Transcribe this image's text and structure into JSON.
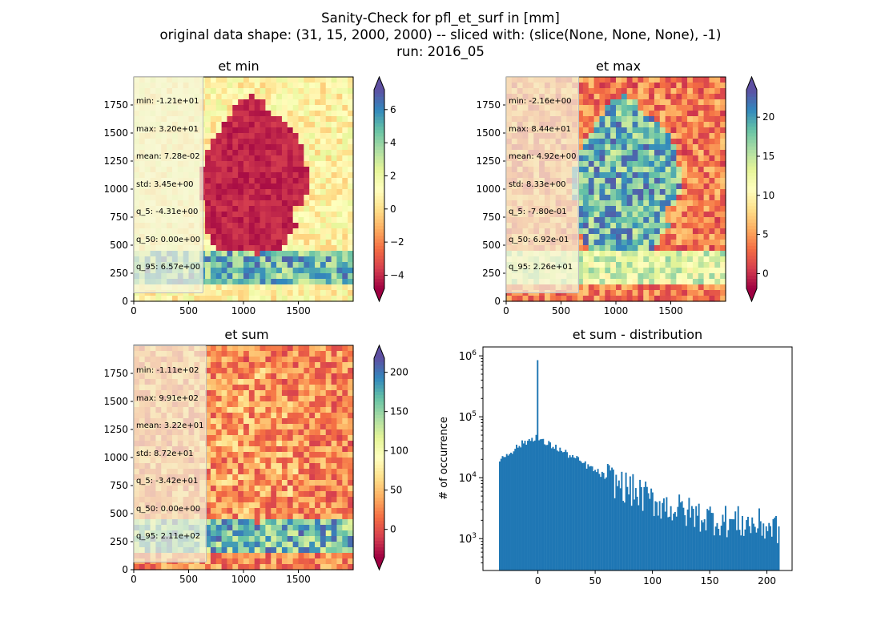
{
  "figure": {
    "title_lines": [
      "Sanity-Check for pfl_et_surf in [mm]",
      "original data shape: (31, 15, 2000, 2000) -- sliced with: (slice(None, None, None), -1)",
      "run: 2016_05"
    ]
  },
  "chart_data": [
    {
      "type": "heatmap",
      "title": "et min",
      "xlabel": "",
      "ylabel": "",
      "xlim": [
        0,
        2000
      ],
      "ylim": [
        0,
        2000
      ],
      "xticks": [
        "0",
        "500",
        "1000",
        "1500"
      ],
      "yticks": [
        "0",
        "250",
        "500",
        "750",
        "1000",
        "1250",
        "1500",
        "1750"
      ],
      "colormap": "Spectral",
      "colorbar": {
        "min": -4.8,
        "max": 7.2,
        "ticks": [
          "−4",
          "−2",
          "0",
          "2",
          "4",
          "6"
        ],
        "tick_values": [
          -4,
          -2,
          0,
          2,
          4,
          6
        ],
        "extend": "both"
      },
      "stats": [
        "min: -1.21e+01",
        "max: 3.20e+01",
        "mean: 7.28e-02",
        "std: 3.45e+00",
        "q_5: -4.31e+00",
        "q_50: 0.00e+00",
        "q_95: 6.57e+00"
      ]
    },
    {
      "type": "heatmap",
      "title": "et max",
      "xlabel": "",
      "ylabel": "",
      "xlim": [
        0,
        2000
      ],
      "ylim": [
        0,
        2000
      ],
      "xticks": [
        "0",
        "500",
        "1000",
        "1500"
      ],
      "yticks": [
        "0",
        "250",
        "500",
        "750",
        "1000",
        "1250",
        "1500",
        "1750"
      ],
      "colormap": "Spectral",
      "colorbar": {
        "min": -1.9,
        "max": 23.5,
        "ticks": [
          "0",
          "5",
          "10",
          "15",
          "20"
        ],
        "tick_values": [
          0,
          5,
          10,
          15,
          20
        ],
        "extend": "both"
      },
      "stats": [
        "min: -2.16e+00",
        "max: 8.44e+01",
        "mean: 4.92e+00",
        "std: 8.33e+00",
        "q_5: -7.80e-01",
        "q_50: 6.92e-01",
        "q_95: 2.26e+01"
      ]
    },
    {
      "type": "heatmap",
      "title": "et sum",
      "xlabel": "",
      "ylabel": "",
      "xlim": [
        0,
        2000
      ],
      "ylim": [
        0,
        2000
      ],
      "xticks": [
        "0",
        "500",
        "1000",
        "1500"
      ],
      "yticks": [
        "0",
        "250",
        "500",
        "750",
        "1000",
        "1250",
        "1500",
        "1750"
      ],
      "colormap": "Spectral",
      "colorbar": {
        "min": -35,
        "max": 218,
        "ticks": [
          "0",
          "50",
          "100",
          "150",
          "200"
        ],
        "tick_values": [
          0,
          50,
          100,
          150,
          200
        ],
        "extend": "both"
      },
      "stats": [
        "min: -1.11e+02",
        "max: 9.91e+02",
        "mean: 3.22e+01",
        "std: 8.72e+01",
        "q_5: -3.42e+01",
        "q_50: 0.00e+00",
        "q_95: 2.11e+02"
      ]
    },
    {
      "type": "bar",
      "title": "et sum - distribution",
      "xlabel": "",
      "ylabel": "# of occurrence",
      "xlim": [
        -48,
        222
      ],
      "ylim": [
        300,
        1400000
      ],
      "yscale": "log",
      "xticks": [
        "0",
        "50",
        "100",
        "150",
        "200"
      ],
      "yticks": [
        "10^3",
        "10^4",
        "10^5",
        "10^6"
      ],
      "color": "#1f77b4",
      "bin_range": [
        -34,
        211
      ],
      "bins": 200,
      "spike": {
        "x": 0,
        "y": 850000
      },
      "series": [
        {
          "x": [
            -34,
            -30,
            -25,
            -20,
            -15,
            -10,
            -5,
            -1,
            1,
            5,
            10,
            15,
            20,
            25,
            30,
            35,
            40,
            45,
            50,
            55,
            60,
            65,
            70,
            75,
            80,
            85,
            90,
            95,
            100,
            105,
            110,
            115,
            120,
            125,
            130,
            135,
            140,
            145,
            150,
            155,
            160,
            165,
            170,
            175,
            180,
            185,
            190,
            195,
            200,
            205,
            211
          ],
          "y": [
            19000,
            22000,
            26000,
            30000,
            35000,
            39000,
            44000,
            48000,
            42000,
            38000,
            35000,
            32000,
            28000,
            25000,
            22000,
            19500,
            17000,
            15000,
            13000,
            11500,
            10000,
            9000,
            8000,
            7200,
            6500,
            5800,
            5200,
            4700,
            4200,
            3900,
            3600,
            3300,
            3100,
            2900,
            2700,
            2550,
            2400,
            2300,
            2200,
            2100,
            2000,
            1950,
            1900,
            1850,
            1800,
            1750,
            1700,
            1650,
            1600,
            1550,
            1500
          ]
        }
      ]
    }
  ]
}
